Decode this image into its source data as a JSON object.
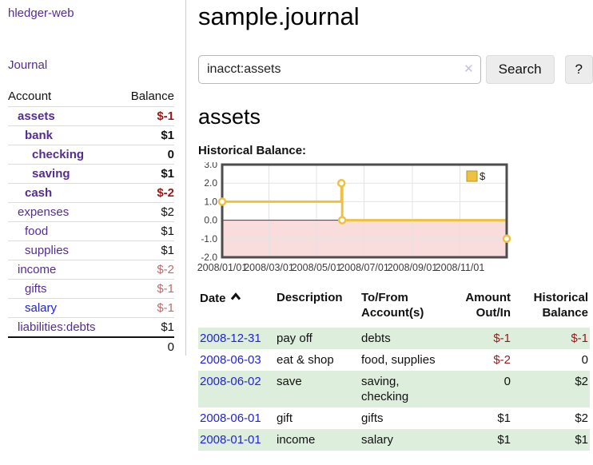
{
  "sidebar": {
    "app_title": "hledger-web",
    "nav": {
      "journal": "Journal"
    },
    "accounts_table": {
      "headers": {
        "account": "Account",
        "balance": "Balance"
      },
      "rows": [
        {
          "name": "assets",
          "balance": "$-1",
          "level": 1,
          "strong": true,
          "name_color": "purple",
          "balance_color": "neg-strong"
        },
        {
          "name": "bank",
          "balance": "$1",
          "level": 2,
          "strong": true,
          "name_color": "purple",
          "balance_color": "strong"
        },
        {
          "name": "checking",
          "balance": "0",
          "level": 3,
          "strong": true,
          "name_color": "purple",
          "balance_color": "strong"
        },
        {
          "name": "saving",
          "balance": "$1",
          "level": 3,
          "strong": true,
          "name_color": "purple",
          "balance_color": "strong"
        },
        {
          "name": "cash",
          "balance": "$-2",
          "level": 2,
          "strong": true,
          "name_color": "purple",
          "balance_color": "neg-strong"
        },
        {
          "name": "expenses",
          "balance": "$2",
          "level": 1,
          "strong": false,
          "name_color": "purple",
          "balance_color": "plain"
        },
        {
          "name": "food",
          "balance": "$1",
          "level": 2,
          "strong": false,
          "name_color": "purple",
          "balance_color": "plain"
        },
        {
          "name": "supplies",
          "balance": "$1",
          "level": 2,
          "strong": false,
          "name_color": "purple",
          "balance_color": "plain"
        },
        {
          "name": "income",
          "balance": "$-2",
          "level": 1,
          "strong": false,
          "name_color": "purple",
          "balance_color": "neg-soft"
        },
        {
          "name": "gifts",
          "balance": "$-1",
          "level": 2,
          "strong": false,
          "name_color": "purple",
          "balance_color": "neg-soft"
        },
        {
          "name": "salary",
          "balance": "$-1",
          "level": 2,
          "strong": false,
          "name_color": "blue",
          "balance_color": "neg-soft"
        },
        {
          "name": "liabilities:debts",
          "balance": "$1",
          "level": 1,
          "strong": false,
          "name_color": "purple",
          "balance_color": "plain"
        }
      ],
      "total": "0"
    }
  },
  "main": {
    "title": "sample.journal",
    "search": {
      "value": "inacct:assets",
      "clear_icon": "✕",
      "button": "Search",
      "help_button": "?"
    },
    "account_heading": "assets",
    "chart_label": "Historical Balance:",
    "register_table": {
      "headers": {
        "date": "Date",
        "description": "Description",
        "accounts": "To/From Account(s)",
        "amount": "Amount Out/In",
        "balance": "Historical Balance"
      },
      "sort": "ascending",
      "rows": [
        {
          "date": "2008-12-31",
          "description": "pay off",
          "accounts": "debts",
          "amount": "$-1",
          "amount_neg": true,
          "balance": "$-1",
          "balance_neg": true
        },
        {
          "date": "2008-06-03",
          "description": "eat & shop",
          "accounts": "food, supplies",
          "amount": "$-2",
          "amount_neg": true,
          "balance": "0",
          "balance_neg": false
        },
        {
          "date": "2008-06-02",
          "description": "save",
          "accounts": "saving, checking",
          "amount": "0",
          "amount_neg": false,
          "balance": "$2",
          "balance_neg": false
        },
        {
          "date": "2008-06-01",
          "description": "gift",
          "accounts": "gifts",
          "amount": "$1",
          "amount_neg": false,
          "balance": "$2",
          "balance_neg": false
        },
        {
          "date": "2008-01-01",
          "description": "income",
          "accounts": "salary",
          "amount": "$1",
          "amount_neg": false,
          "balance": "$1",
          "balance_neg": false
        }
      ]
    }
  },
  "chart_data": {
    "type": "line",
    "step": true,
    "title": "Historical Balance",
    "xlabel": "",
    "ylabel": "",
    "xlim": [
      "2008-01-01",
      "2008-12-31"
    ],
    "ylim": [
      -2,
      3
    ],
    "x_ticks": [
      "2008/01/01",
      "2008/03/01",
      "2008/05/01",
      "2008/07/01",
      "2008/09/01",
      "2008/11/01"
    ],
    "y_ticks": [
      3.0,
      2.0,
      1.0,
      0.0,
      -1.0,
      -2.0
    ],
    "grid": true,
    "legend_position": "top-right",
    "series": [
      {
        "name": "$",
        "color": "#edc240",
        "points": [
          [
            "2008-01-01",
            1
          ],
          [
            "2008-06-02",
            2
          ],
          [
            "2008-06-03",
            0
          ],
          [
            "2008-12-31",
            -1
          ]
        ]
      }
    ],
    "negative_region_color": "#f9dcdc",
    "zero_line_color": "#8b1d1d",
    "grid_color": "#e3e3e3",
    "border_color": "#4d4d4d",
    "tick_text_color": "#3c3c3c",
    "legend_swatch_border": "#b8962e"
  },
  "colors": {
    "link_purple": "#552d90",
    "link_blue": "#2222dd",
    "negative_strong": "#941a1a",
    "negative_soft": "#b96c6c",
    "row_stripe_green": "#ddeedd",
    "button_bg": "#ececec"
  }
}
